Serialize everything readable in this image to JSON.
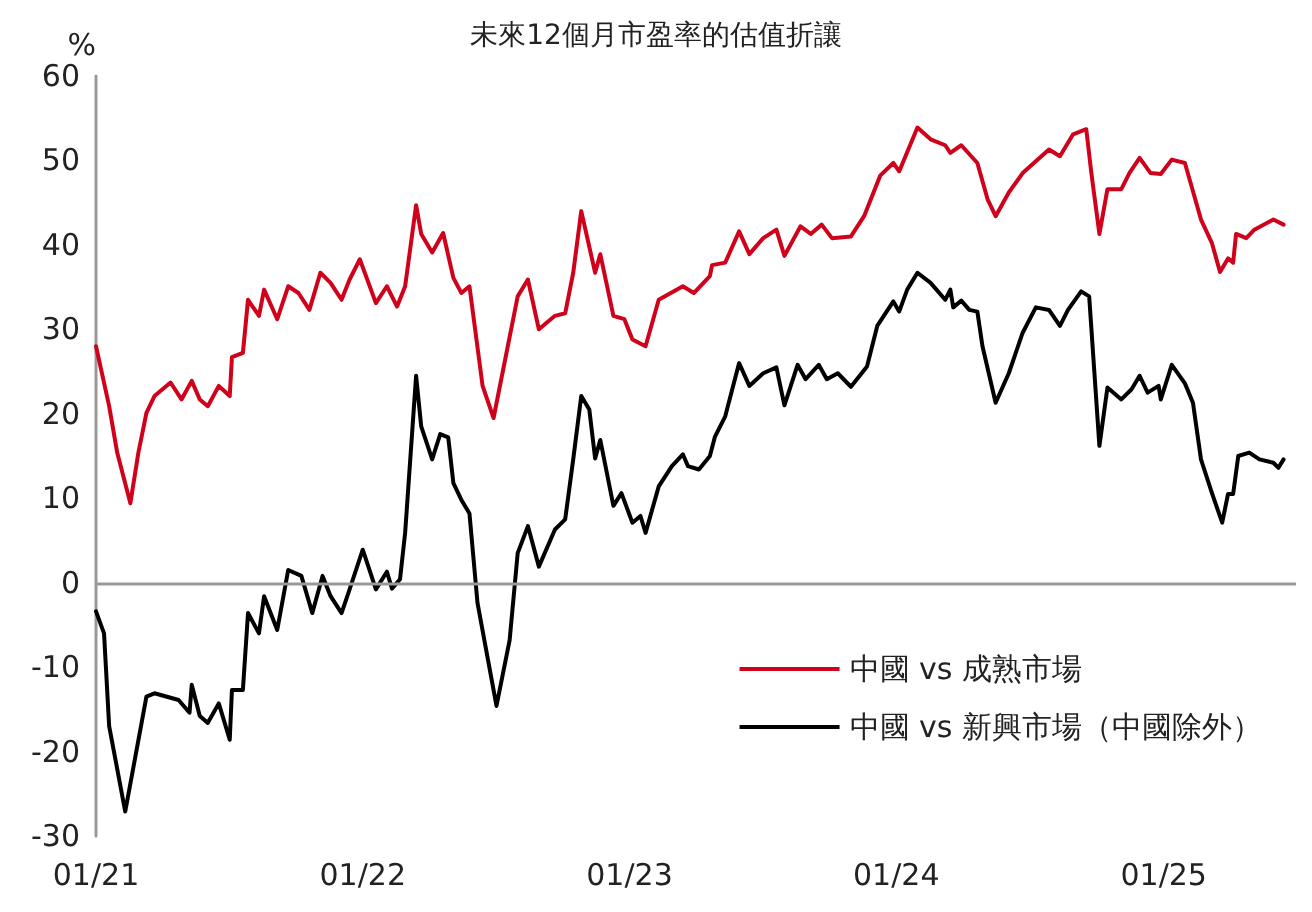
{
  "chart_data": {
    "type": "line",
    "title": "未來12個月市盈率的估值折讓",
    "ylabel": "%",
    "xlim": [
      "2021-01-01",
      "2025-07-01"
    ],
    "xticks": [
      {
        "value": "2021-01-01",
        "label": "01/21"
      },
      {
        "value": "2022-01-01",
        "label": "01/22"
      },
      {
        "value": "2023-01-01",
        "label": "01/23"
      },
      {
        "value": "2024-01-01",
        "label": "01/24"
      },
      {
        "value": "2025-01-01",
        "label": "01/25"
      }
    ],
    "ylim": [
      -30,
      60
    ],
    "yticks": [
      -30,
      -20,
      -10,
      0,
      10,
      20,
      30,
      40,
      50,
      60
    ],
    "ref_lines": [
      {
        "axis": "y",
        "value": 0,
        "color": "#999999"
      }
    ],
    "grid": false,
    "legend": "bottom right",
    "marker": "none",
    "line_style": "solid",
    "series": [
      {
        "name": "中國 vs 成熟市場",
        "color": "#d0021b",
        "x": [
          "2021-01-01",
          "2021-01-19",
          "2021-01-30",
          "2021-02-17",
          "2021-02-28",
          "2021-03-11",
          "2021-03-22",
          "2021-04-13",
          "2021-04-28",
          "2021-05-12",
          "2021-05-23",
          "2021-06-03",
          "2021-06-18",
          "2021-07-03",
          "2021-07-06",
          "2021-07-21",
          "2021-07-28",
          "2021-08-12",
          "2021-08-19",
          "2021-09-06",
          "2021-09-21",
          "2021-10-05",
          "2021-10-20",
          "2021-11-04",
          "2021-11-18",
          "2021-12-03",
          "2021-12-14",
          "2021-12-28",
          "2022-01-19",
          "2022-02-03",
          "2022-02-17",
          "2022-02-28",
          "2022-03-15",
          "2022-03-22",
          "2022-04-06",
          "2022-04-21",
          "2022-05-05",
          "2022-05-16",
          "2022-05-27",
          "2022-06-14",
          "2022-06-29",
          "2022-08-01",
          "2022-08-15",
          "2022-08-30",
          "2022-09-21",
          "2022-10-05",
          "2022-10-16",
          "2022-10-27",
          "2022-11-15",
          "2022-11-22",
          "2022-12-10",
          "2022-12-25",
          "2023-01-05",
          "2023-01-23",
          "2023-02-10",
          "2023-03-15",
          "2023-03-30",
          "2023-04-21",
          "2023-04-24",
          "2023-05-12",
          "2023-05-31",
          "2023-06-14",
          "2023-07-03",
          "2023-07-21",
          "2023-08-01",
          "2023-08-23",
          "2023-09-06",
          "2023-09-21",
          "2023-10-05",
          "2023-10-31",
          "2023-11-18",
          "2023-12-10",
          "2023-12-28",
          "2024-01-05",
          "2024-01-30",
          "2024-02-17",
          "2024-03-08",
          "2024-03-15",
          "2024-03-30",
          "2024-04-21",
          "2024-05-05",
          "2024-05-16",
          "2024-06-03",
          "2024-06-22",
          "2024-07-28",
          "2024-08-12",
          "2024-08-30",
          "2024-09-17",
          "2024-09-24",
          "2024-10-05",
          "2024-10-16",
          "2024-11-04",
          "2024-11-15",
          "2024-11-29",
          "2024-12-14",
          "2024-12-28",
          "2025-01-12",
          "2025-01-30",
          "2025-02-21",
          "2025-03-08",
          "2025-03-19",
          "2025-03-30",
          "2025-04-06",
          "2025-04-10",
          "2025-04-24",
          "2025-05-05",
          "2025-05-31",
          "2025-06-14"
        ],
        "values": [
          28.0,
          20.9,
          15.4,
          9.4,
          15.4,
          20.1,
          22.1,
          23.7,
          21.7,
          23.9,
          21.7,
          20.9,
          23.3,
          22.1,
          26.7,
          27.2,
          33.5,
          31.6,
          34.7,
          31.2,
          35.1,
          34.3,
          32.3,
          36.7,
          35.5,
          33.5,
          35.9,
          38.3,
          33.1,
          35.1,
          32.7,
          35.1,
          44.7,
          41.3,
          39.1,
          41.4,
          36.1,
          34.3,
          35.1,
          23.3,
          19.5,
          33.9,
          35.9,
          30.0,
          31.6,
          31.9,
          36.7,
          44.0,
          36.7,
          38.9,
          31.6,
          31.2,
          28.8,
          28.0,
          33.5,
          35.1,
          34.3,
          36.3,
          37.6,
          37.9,
          41.6,
          38.9,
          40.8,
          41.8,
          38.7,
          42.2,
          41.3,
          42.4,
          40.8,
          41.0,
          43.4,
          48.2,
          49.7,
          48.7,
          53.9,
          52.5,
          51.8,
          50.9,
          51.8,
          49.7,
          45.4,
          43.4,
          46.2,
          48.5,
          51.3,
          50.5,
          53.1,
          53.7,
          48.5,
          41.3,
          46.6,
          46.6,
          48.5,
          50.3,
          48.5,
          48.4,
          50.1,
          49.7,
          43.0,
          40.2,
          36.8,
          38.4,
          37.9,
          41.3,
          40.8,
          41.8,
          43.0,
          42.4
        ]
      },
      {
        "name": "中國 vs 新興市場（中國除外）",
        "color": "#000000",
        "x": [
          "2021-01-01",
          "2021-01-12",
          "2021-01-19",
          "2021-02-10",
          "2021-03-11",
          "2021-03-22",
          "2021-04-24",
          "2021-05-09",
          "2021-05-12",
          "2021-05-23",
          "2021-06-03",
          "2021-06-18",
          "2021-07-03",
          "2021-07-06",
          "2021-07-21",
          "2021-07-28",
          "2021-08-12",
          "2021-08-19",
          "2021-09-06",
          "2021-09-21",
          "2021-10-09",
          "2021-10-24",
          "2021-11-07",
          "2021-11-18",
          "2021-12-03",
          "2021-12-14",
          "2022-01-01",
          "2022-01-19",
          "2022-02-03",
          "2022-02-10",
          "2022-02-21",
          "2022-02-28",
          "2022-03-15",
          "2022-03-22",
          "2022-04-06",
          "2022-04-17",
          "2022-04-28",
          "2022-05-05",
          "2022-05-16",
          "2022-05-27",
          "2022-06-07",
          "2022-07-03",
          "2022-07-21",
          "2022-08-01",
          "2022-08-15",
          "2022-08-30",
          "2022-09-21",
          "2022-10-05",
          "2022-10-16",
          "2022-10-27",
          "2022-11-07",
          "2022-11-15",
          "2022-11-22",
          "2022-12-10",
          "2022-12-21",
          "2023-01-05",
          "2023-01-16",
          "2023-01-23",
          "2023-02-10",
          "2023-02-28",
          "2023-03-15",
          "2023-03-22",
          "2023-04-06",
          "2023-04-21",
          "2023-04-28",
          "2023-05-12",
          "2023-05-31",
          "2023-06-14",
          "2023-07-03",
          "2023-07-21",
          "2023-08-01",
          "2023-08-19",
          "2023-08-30",
          "2023-09-17",
          "2023-09-28",
          "2023-10-13",
          "2023-10-31",
          "2023-11-22",
          "2023-12-06",
          "2023-12-28",
          "2024-01-05",
          "2024-01-16",
          "2024-01-30",
          "2024-02-17",
          "2024-03-08",
          "2024-03-15",
          "2024-03-19",
          "2024-03-30",
          "2024-04-10",
          "2024-04-21",
          "2024-04-28",
          "2024-05-16",
          "2024-06-03",
          "2024-06-22",
          "2024-07-10",
          "2024-07-28",
          "2024-08-12",
          "2024-08-23",
          "2024-09-10",
          "2024-09-21",
          "2024-10-05",
          "2024-10-16",
          "2024-11-04",
          "2024-11-18",
          "2024-11-29",
          "2024-12-10",
          "2024-12-25",
          "2024-12-28",
          "2025-01-12",
          "2025-01-30",
          "2025-02-10",
          "2025-02-21",
          "2025-03-08",
          "2025-03-22",
          "2025-03-30",
          "2025-04-06",
          "2025-04-13",
          "2025-04-28",
          "2025-05-12",
          "2025-05-31",
          "2025-06-07",
          "2025-06-14"
        ],
        "values": [
          -3.4,
          -6.0,
          -17.0,
          -27.1,
          -13.5,
          -13.1,
          -13.9,
          -15.4,
          -12.1,
          -15.8,
          -16.6,
          -14.3,
          -18.6,
          -12.7,
          -12.7,
          -3.6,
          -6.0,
          -1.6,
          -5.6,
          1.5,
          0.8,
          -3.6,
          0.8,
          -1.6,
          -3.6,
          -0.8,
          3.9,
          -0.8,
          1.3,
          -0.7,
          0.4,
          5.9,
          24.5,
          18.5,
          14.6,
          17.6,
          17.2,
          11.8,
          9.8,
          8.2,
          -2.4,
          -14.6,
          -6.8,
          3.5,
          6.7,
          1.9,
          6.3,
          7.5,
          14.6,
          22.1,
          20.5,
          14.7,
          16.9,
          9.1,
          10.6,
          7.1,
          7.9,
          5.9,
          11.4,
          13.8,
          15.2,
          13.8,
          13.4,
          15.0,
          17.3,
          19.7,
          26.0,
          23.3,
          24.8,
          25.5,
          21.0,
          25.8,
          24.1,
          25.8,
          24.1,
          24.8,
          23.2,
          25.6,
          30.4,
          33.3,
          32.1,
          34.7,
          36.7,
          35.5,
          33.5,
          34.7,
          32.6,
          33.4,
          32.3,
          32.1,
          28.0,
          21.3,
          24.8,
          29.6,
          32.6,
          32.3,
          30.4,
          32.3,
          34.5,
          33.9,
          16.2,
          23.1,
          21.7,
          22.9,
          24.5,
          22.5,
          23.3,
          21.7,
          25.8,
          23.6,
          21.3,
          14.6,
          10.6,
          7.1,
          10.5,
          10.5,
          15.0,
          15.4,
          14.6,
          14.2,
          13.6,
          14.6
        ]
      }
    ]
  }
}
